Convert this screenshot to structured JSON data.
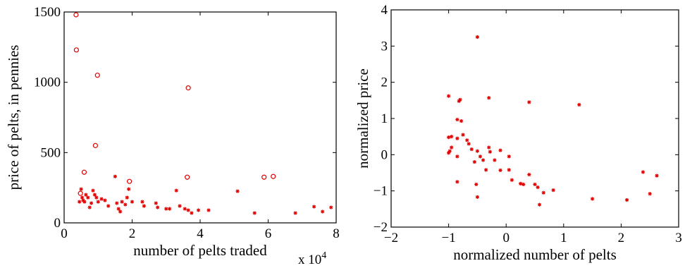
{
  "colors": {
    "marker": "#e00000",
    "axis": "#000000",
    "background": "#ffffff"
  },
  "chart_data": [
    {
      "type": "scatter",
      "title": "",
      "xlabel": "number of pelts traded",
      "ylabel": "price of pelts, in pennies",
      "x_exponent_label": "x 10",
      "x_exponent_power": "4",
      "xlim": [
        0,
        80000
      ],
      "ylim": [
        0,
        1500
      ],
      "xticks": [
        0,
        20000,
        40000,
        60000,
        80000
      ],
      "xtick_labels": [
        "0",
        "2",
        "4",
        "6",
        "8"
      ],
      "yticks": [
        0,
        500,
        1000,
        1500
      ],
      "ytick_labels": [
        "0",
        "500",
        "1000",
        "1500"
      ],
      "grid": false,
      "series": [
        {
          "marker": "circle",
          "points": [
            {
              "x": 3500,
              "y": 1480
            },
            {
              "x": 3600,
              "y": 1230
            },
            {
              "x": 9800,
              "y": 1050
            },
            {
              "x": 36500,
              "y": 960
            },
            {
              "x": 9200,
              "y": 550
            },
            {
              "x": 5900,
              "y": 360
            },
            {
              "x": 36200,
              "y": 325
            },
            {
              "x": 58800,
              "y": 325
            },
            {
              "x": 61500,
              "y": 330
            },
            {
              "x": 19200,
              "y": 295
            },
            {
              "x": 4800,
              "y": 210
            }
          ]
        },
        {
          "marker": "asterisk",
          "points": [
            {
              "x": 4500,
              "y": 150
            },
            {
              "x": 5000,
              "y": 240
            },
            {
              "x": 5300,
              "y": 180
            },
            {
              "x": 5600,
              "y": 160
            },
            {
              "x": 6000,
              "y": 150
            },
            {
              "x": 6400,
              "y": 200
            },
            {
              "x": 7000,
              "y": 180
            },
            {
              "x": 7500,
              "y": 110
            },
            {
              "x": 8000,
              "y": 140
            },
            {
              "x": 8500,
              "y": 230
            },
            {
              "x": 9000,
              "y": 200
            },
            {
              "x": 9500,
              "y": 180
            },
            {
              "x": 10000,
              "y": 150
            },
            {
              "x": 11000,
              "y": 170
            },
            {
              "x": 12000,
              "y": 160
            },
            {
              "x": 13000,
              "y": 120
            },
            {
              "x": 15000,
              "y": 330
            },
            {
              "x": 15500,
              "y": 140
            },
            {
              "x": 16000,
              "y": 100
            },
            {
              "x": 16500,
              "y": 80
            },
            {
              "x": 17000,
              "y": 150
            },
            {
              "x": 18000,
              "y": 130
            },
            {
              "x": 18500,
              "y": 180
            },
            {
              "x": 19000,
              "y": 240
            },
            {
              "x": 20000,
              "y": 150
            },
            {
              "x": 23000,
              "y": 150
            },
            {
              "x": 23500,
              "y": 120
            },
            {
              "x": 27000,
              "y": 140
            },
            {
              "x": 27500,
              "y": 110
            },
            {
              "x": 30000,
              "y": 100
            },
            {
              "x": 31000,
              "y": 100
            },
            {
              "x": 33000,
              "y": 230
            },
            {
              "x": 34000,
              "y": 120
            },
            {
              "x": 35500,
              "y": 100
            },
            {
              "x": 36500,
              "y": 90
            },
            {
              "x": 37500,
              "y": 70
            },
            {
              "x": 39500,
              "y": 90
            },
            {
              "x": 42500,
              "y": 90
            },
            {
              "x": 51000,
              "y": 225
            },
            {
              "x": 56000,
              "y": 70
            },
            {
              "x": 68000,
              "y": 70
            },
            {
              "x": 73500,
              "y": 115
            },
            {
              "x": 76000,
              "y": 80
            },
            {
              "x": 78500,
              "y": 110
            }
          ]
        }
      ]
    },
    {
      "type": "scatter",
      "title": "",
      "xlabel": "normalized number of pelts",
      "ylabel": "normalized price",
      "xlim": [
        -2,
        3
      ],
      "ylim": [
        -2,
        4
      ],
      "xticks": [
        -2,
        -1,
        0,
        1,
        2,
        3
      ],
      "xtick_labels": [
        "−2",
        "−1",
        "0",
        "1",
        "2",
        "3"
      ],
      "yticks": [
        -2,
        -1,
        0,
        1,
        2,
        3,
        4
      ],
      "ytick_labels": [
        "−2",
        "−1",
        "0",
        "1",
        "2",
        "3",
        "4"
      ],
      "grid": false,
      "series": [
        {
          "marker": "asterisk",
          "points": [
            {
              "x": -0.5,
              "y": 3.25
            },
            {
              "x": -1.0,
              "y": 1.62
            },
            {
              "x": -0.8,
              "y": 1.52
            },
            {
              "x": -0.82,
              "y": 1.48
            },
            {
              "x": -0.3,
              "y": 1.57
            },
            {
              "x": 0.4,
              "y": 1.45
            },
            {
              "x": 1.27,
              "y": 1.38
            },
            {
              "x": -0.85,
              "y": 0.97
            },
            {
              "x": -0.78,
              "y": 0.93
            },
            {
              "x": -1.0,
              "y": 0.48
            },
            {
              "x": -0.95,
              "y": 0.5
            },
            {
              "x": -0.85,
              "y": 0.45
            },
            {
              "x": -0.75,
              "y": 0.55
            },
            {
              "x": -0.68,
              "y": 0.4
            },
            {
              "x": -0.65,
              "y": 0.3
            },
            {
              "x": -0.95,
              "y": 0.2
            },
            {
              "x": -0.98,
              "y": 0.1
            },
            {
              "x": -1.0,
              "y": 0.05
            },
            {
              "x": -0.85,
              "y": -0.05
            },
            {
              "x": -0.6,
              "y": 0.15
            },
            {
              "x": -0.5,
              "y": 0.1
            },
            {
              "x": -0.3,
              "y": 0.2
            },
            {
              "x": -0.28,
              "y": 0.08
            },
            {
              "x": -0.1,
              "y": 0.12
            },
            {
              "x": 0.05,
              "y": -0.05
            },
            {
              "x": -0.45,
              "y": -0.05
            },
            {
              "x": -0.4,
              "y": -0.15
            },
            {
              "x": -0.55,
              "y": -0.2
            },
            {
              "x": -0.2,
              "y": -0.15
            },
            {
              "x": -0.35,
              "y": -0.42
            },
            {
              "x": -0.1,
              "y": -0.43
            },
            {
              "x": 0.05,
              "y": -0.42
            },
            {
              "x": 0.1,
              "y": -0.7
            },
            {
              "x": 0.25,
              "y": -0.8
            },
            {
              "x": 0.3,
              "y": -0.82
            },
            {
              "x": 0.4,
              "y": -0.55
            },
            {
              "x": 0.5,
              "y": -0.82
            },
            {
              "x": 0.55,
              "y": -0.9
            },
            {
              "x": 0.65,
              "y": -1.05
            },
            {
              "x": 0.82,
              "y": -0.98
            },
            {
              "x": 0.58,
              "y": -1.38
            },
            {
              "x": -0.52,
              "y": -0.82
            },
            {
              "x": -0.85,
              "y": -0.75
            },
            {
              "x": -0.5,
              "y": -1.17
            },
            {
              "x": 1.5,
              "y": -1.22
            },
            {
              "x": 2.1,
              "y": -1.25
            },
            {
              "x": 2.38,
              "y": -0.48
            },
            {
              "x": 2.5,
              "y": -1.08
            },
            {
              "x": 2.62,
              "y": -0.58
            }
          ]
        }
      ]
    }
  ]
}
